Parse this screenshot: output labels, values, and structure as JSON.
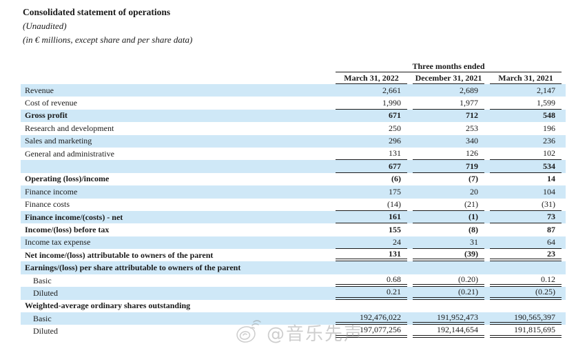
{
  "title": "Consolidated statement of operations",
  "subtitle1": "(Unaudited)",
  "subtitle2": "(in € millions, except share and per share data)",
  "table": {
    "period_header": "Three months ended",
    "columns": [
      "March 31, 2022",
      "December 31, 2021",
      "March 31, 2021"
    ],
    "rows": [
      {
        "label": "Revenue",
        "values": [
          "2,661",
          "2,689",
          "2,147"
        ],
        "bold": false,
        "indent": false,
        "rule": "none",
        "shaded": true
      },
      {
        "label": "Cost of revenue",
        "values": [
          "1,990",
          "1,977",
          "1,599"
        ],
        "bold": false,
        "indent": false,
        "rule": "single",
        "shaded": false
      },
      {
        "label": "Gross profit",
        "values": [
          "671",
          "712",
          "548"
        ],
        "bold": true,
        "indent": false,
        "rule": "none",
        "shaded": true
      },
      {
        "label": "Research and development",
        "values": [
          "250",
          "253",
          "196"
        ],
        "bold": false,
        "indent": false,
        "rule": "none",
        "shaded": false
      },
      {
        "label": "Sales and marketing",
        "values": [
          "296",
          "340",
          "236"
        ],
        "bold": false,
        "indent": false,
        "rule": "none",
        "shaded": true
      },
      {
        "label": "General and administrative",
        "values": [
          "131",
          "126",
          "102"
        ],
        "bold": false,
        "indent": false,
        "rule": "single",
        "shaded": false
      },
      {
        "label": "",
        "values": [
          "677",
          "719",
          "534"
        ],
        "bold": true,
        "indent": false,
        "rule": "single",
        "shaded": true
      },
      {
        "label": "Operating (loss)/income",
        "values": [
          "(6)",
          "(7)",
          "14"
        ],
        "bold": true,
        "indent": false,
        "rule": "none",
        "shaded": false
      },
      {
        "label": "Finance income",
        "values": [
          "175",
          "20",
          "104"
        ],
        "bold": false,
        "indent": false,
        "rule": "none",
        "shaded": true
      },
      {
        "label": "Finance costs",
        "values": [
          "(14)",
          "(21)",
          "(31)"
        ],
        "bold": false,
        "indent": false,
        "rule": "single",
        "shaded": false
      },
      {
        "label": "Finance income/(costs) - net",
        "values": [
          "161",
          "(1)",
          "73"
        ],
        "bold": true,
        "indent": false,
        "rule": "single",
        "shaded": true
      },
      {
        "label": "Income/(loss) before tax",
        "values": [
          "155",
          "(8)",
          "87"
        ],
        "bold": true,
        "indent": false,
        "rule": "none",
        "shaded": false
      },
      {
        "label": "Income tax expense",
        "values": [
          "24",
          "31",
          "64"
        ],
        "bold": false,
        "indent": false,
        "rule": "single",
        "shaded": true
      },
      {
        "label": "Net income/(loss) attributable to owners of the parent",
        "values": [
          "131",
          "(39)",
          "23"
        ],
        "bold": true,
        "indent": false,
        "rule": "double",
        "shaded": false
      },
      {
        "label": "Earnings/(loss) per share attributable to owners of the parent",
        "values": [
          "",
          "",
          ""
        ],
        "bold": true,
        "indent": false,
        "rule": "none",
        "shaded": true
      },
      {
        "label": "Basic",
        "values": [
          "0.68",
          "(0.20)",
          "0.12"
        ],
        "bold": false,
        "indent": true,
        "rule": "double",
        "shaded": false
      },
      {
        "label": "Diluted",
        "values": [
          "0.21",
          "(0.21)",
          "(0.25)"
        ],
        "bold": false,
        "indent": true,
        "rule": "double",
        "shaded": true
      },
      {
        "label": "Weighted-average ordinary shares outstanding",
        "values": [
          "",
          "",
          ""
        ],
        "bold": true,
        "indent": false,
        "rule": "none",
        "shaded": false
      },
      {
        "label": "Basic",
        "values": [
          "192,476,022",
          "191,952,473",
          "190,565,397"
        ],
        "bold": false,
        "indent": true,
        "rule": "double",
        "shaded": true
      },
      {
        "label": "Diluted",
        "values": [
          "197,077,256",
          "192,144,654",
          "191,815,695"
        ],
        "bold": false,
        "indent": true,
        "rule": "double",
        "shaded": false
      }
    ]
  },
  "watermark": {
    "text": "@音乐先声"
  },
  "colors": {
    "band": "#cfe8f7",
    "text": "#1a1a1a",
    "rule": "#1a1a1a",
    "watermark_gray": "#8c8c8c"
  }
}
